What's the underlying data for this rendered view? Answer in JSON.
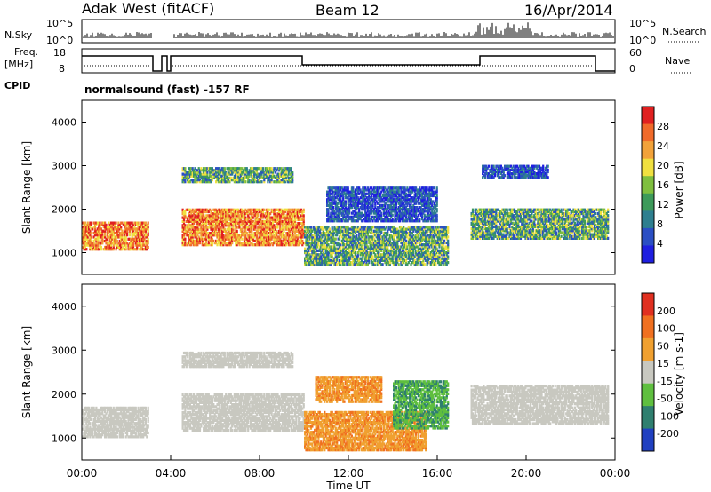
{
  "header": {
    "station": "Adak West (fitACF)",
    "beam": "Beam 12",
    "date": "16/Apr/2014"
  },
  "panels": {
    "nsky": {
      "label": "N.Sky",
      "right_label": "N.Search",
      "ticks": [
        "10^5",
        "10^0"
      ],
      "right_ticks": [
        "10^5",
        "10^0"
      ]
    },
    "freq": {
      "label_line1": "Freq.",
      "label_line2": "[MHz]",
      "ticks": [
        "18",
        "8"
      ],
      "right_label": "Nave",
      "right_ticks": [
        "60",
        "0"
      ]
    },
    "cpid": {
      "label": "CPID",
      "value": "normalsound (fast) -157 RF"
    }
  },
  "chart_data": [
    {
      "type": "heatmap",
      "name": "power",
      "ylabel": "Slant Range [km]",
      "xlabel": "",
      "yticks": [
        "4000",
        "3000",
        "2000",
        "1000"
      ],
      "ylim": [
        500,
        4500
      ],
      "colorbar": {
        "title": "Power [dB]",
        "ticks": [
          "28",
          "24",
          "20",
          "16",
          "12",
          "8",
          "4"
        ],
        "colors": [
          "#1f1fe0",
          "#2b4fc4",
          "#2e7f8f",
          "#3d9a5a",
          "#7fbf3f",
          "#f0e040",
          "#f2a23a",
          "#f06a2a",
          "#e02020"
        ]
      },
      "bands": [
        {
          "t0": 0.0,
          "t1": 3.0,
          "r0": 1050,
          "r1": 1700,
          "level": "high"
        },
        {
          "t0": 4.5,
          "t1": 10.0,
          "r0": 1150,
          "r1": 2000,
          "level": "high"
        },
        {
          "t0": 4.5,
          "t1": 9.5,
          "r0": 2600,
          "r1": 2950,
          "level": "mid"
        },
        {
          "t0": 10.0,
          "t1": 16.5,
          "r0": 700,
          "r1": 1600,
          "level": "mid"
        },
        {
          "t0": 11.0,
          "t1": 16.0,
          "r0": 1700,
          "r1": 2500,
          "level": "low"
        },
        {
          "t0": 17.5,
          "t1": 23.7,
          "r0": 1300,
          "r1": 2000,
          "level": "mid"
        },
        {
          "t0": 18.0,
          "t1": 21.0,
          "r0": 2700,
          "r1": 3000,
          "level": "low"
        }
      ]
    },
    {
      "type": "heatmap",
      "name": "velocity",
      "ylabel": "Slant Range [km]",
      "xlabel": "Time UT",
      "xticks": [
        "00:00",
        "04:00",
        "08:00",
        "12:00",
        "16:00",
        "20:00",
        "00:00"
      ],
      "yticks": [
        "4000",
        "3000",
        "2000",
        "1000"
      ],
      "ylim": [
        500,
        4500
      ],
      "colorbar": {
        "title": "Velocity [m s-1]",
        "ticks": [
          "200",
          "100",
          "50",
          "15",
          "-15",
          "-50",
          "-100",
          "-200"
        ],
        "colors": [
          "#2040c0",
          "#2f7f6f",
          "#5fbf3f",
          "#c8c8c0",
          "#f0a030",
          "#f07020",
          "#e03020"
        ]
      },
      "bands": [
        {
          "t0": 0.0,
          "t1": 3.0,
          "r0": 1000,
          "r1": 1700,
          "level": "ground"
        },
        {
          "t0": 4.5,
          "t1": 10.0,
          "r0": 1150,
          "r1": 2000,
          "level": "ground"
        },
        {
          "t0": 4.5,
          "t1": 9.5,
          "r0": 2600,
          "r1": 2950,
          "level": "ground"
        },
        {
          "t0": 10.0,
          "t1": 15.5,
          "r0": 700,
          "r1": 1600,
          "level": "away"
        },
        {
          "t0": 10.5,
          "t1": 13.5,
          "r0": 1800,
          "r1": 2400,
          "level": "away"
        },
        {
          "t0": 14.0,
          "t1": 16.5,
          "r0": 1200,
          "r1": 2300,
          "level": "toward"
        },
        {
          "t0": 17.5,
          "t1": 23.7,
          "r0": 1300,
          "r1": 2200,
          "level": "ground"
        }
      ]
    }
  ]
}
